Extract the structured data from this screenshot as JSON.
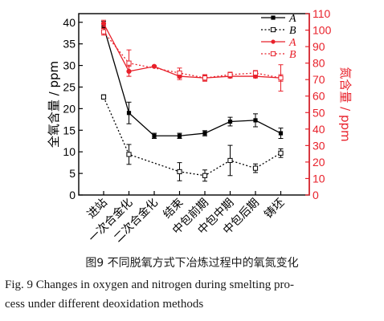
{
  "chart_data": {
    "type": "line",
    "categories": [
      "进站",
      "一次合金化",
      "二次合金化",
      "结束",
      "中包前期",
      "中包中期",
      "中包后期",
      "铸坯"
    ],
    "left_axis": {
      "label": "全氧含量 / ppm",
      "range": [
        0,
        42
      ],
      "ticks": [
        "0",
        "5",
        "10",
        "15",
        "20",
        "25",
        "30",
        "35",
        "40"
      ],
      "color": "#000000"
    },
    "right_axis": {
      "label": "氮含量 / ppm",
      "range": [
        0,
        110
      ],
      "ticks": [
        "0",
        "10",
        "20",
        "30",
        "40",
        "50",
        "60",
        "70",
        "80",
        "90",
        "100",
        "110"
      ],
      "color": "#e8212b"
    },
    "series": [
      {
        "name": "A",
        "axis": "left",
        "marker": "filled-square",
        "line": "solid",
        "color": "#000000",
        "x": [
          0,
          1,
          2,
          3,
          4,
          5,
          6,
          7
        ],
        "values": [
          39.0,
          19.0,
          13.7,
          13.7,
          14.3,
          17.0,
          17.3,
          14.3
        ],
        "errors": [
          1.2,
          2.5,
          0.6,
          0.6,
          0.6,
          1.0,
          1.5,
          1.2
        ]
      },
      {
        "name": "B",
        "axis": "left",
        "marker": "open-square",
        "line": "dotted",
        "color": "#000000",
        "x": [
          0,
          1,
          3,
          4,
          5,
          6,
          7
        ],
        "values": [
          22.7,
          9.4,
          5.4,
          4.5,
          8.0,
          6.2,
          9.7
        ],
        "errors": [
          0.5,
          2.3,
          2.1,
          1.3,
          3.5,
          1.0,
          1.0
        ]
      },
      {
        "name": "A",
        "axis": "right",
        "marker": "filled-circle",
        "line": "solid",
        "color": "#e8212b",
        "x": [
          0,
          1,
          2,
          3,
          4,
          5,
          6,
          7
        ],
        "values": [
          104,
          75,
          78,
          72,
          71,
          72,
          72,
          71
        ],
        "errors": [
          2,
          3,
          0.5,
          2,
          1.5,
          1,
          1,
          2
        ]
      },
      {
        "name": "B",
        "axis": "right",
        "marker": "open-square",
        "line": "dotted",
        "color": "#e8212b",
        "x": [
          0,
          1,
          3,
          4,
          5,
          6,
          7
        ],
        "values": [
          99,
          80,
          74,
          71,
          73,
          74,
          71
        ],
        "errors": [
          2,
          8,
          3,
          2,
          1.5,
          1.5,
          8
        ]
      }
    ],
    "legend": {
      "placement": "top-right",
      "labels": [
        "A",
        "B",
        "A",
        "B"
      ]
    }
  },
  "caption": {
    "cn": "图9   不同脱氧方式下冶炼过程中的氧氮变化",
    "en_line1": "Fig. 9   Changes in oxygen and nitrogen during smelting pro-",
    "en_line2": "cess under different deoxidation methods"
  }
}
